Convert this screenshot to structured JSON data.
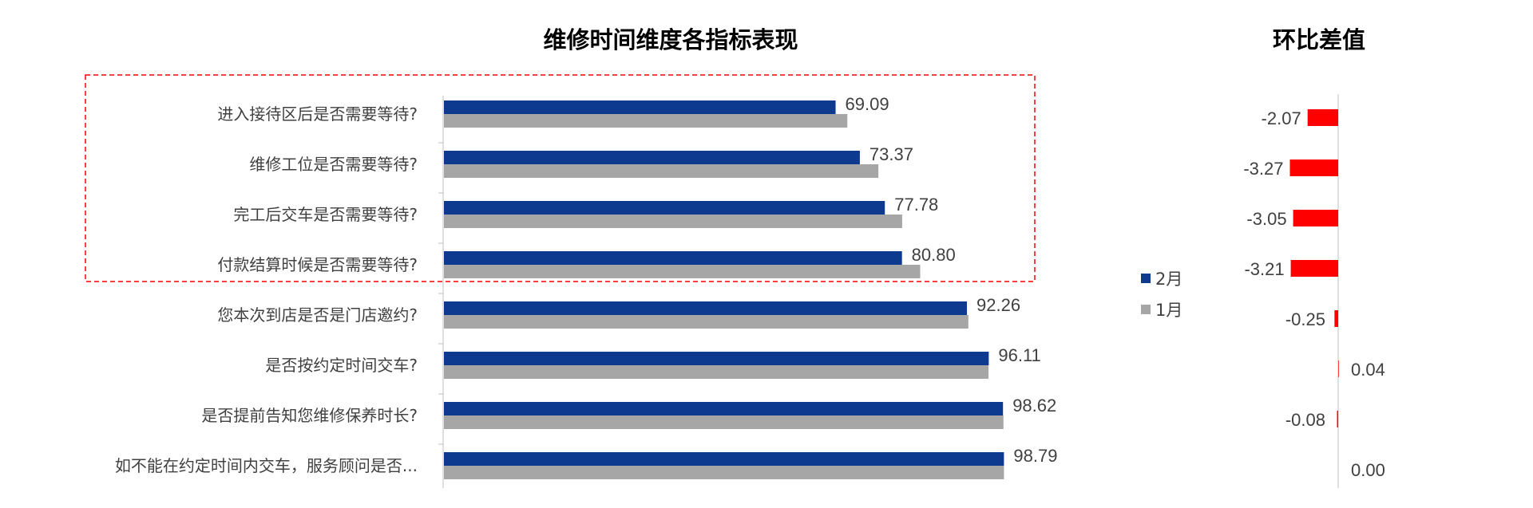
{
  "chart_data": [
    {
      "type": "bar",
      "orientation": "horizontal",
      "title": "维修时间维度各指标表现",
      "categories": [
        "进入接待区后是否需要等待?",
        "维修工位是否需要等待?",
        "完工后交车是否需要等待?",
        "付款结算时候是否需要等待?",
        "您本次到店是否是门店邀约?",
        "是否按约定时间交车?",
        "是否提前告知您维修保养时长?",
        "如不能在约定时间内交车，服务顾问是否..."
      ],
      "series": [
        {
          "name": "2月",
          "color": "#0d3a8e",
          "values": [
            69.09,
            73.37,
            77.78,
            80.8,
            92.26,
            96.11,
            98.62,
            98.79
          ],
          "labels": [
            "69.09",
            "73.37",
            "77.78",
            "80.80",
            "92.26",
            "96.11",
            "98.62",
            "98.79"
          ]
        },
        {
          "name": "1月",
          "color": "#a6a6a6",
          "values": [
            71.16,
            76.64,
            80.83,
            84.01,
            92.51,
            96.07,
            98.7,
            98.79
          ]
        }
      ],
      "xlim": [
        0,
        100
      ],
      "highlight": {
        "style": "dashed-box",
        "color": "#ff0000",
        "categories": [
          0,
          1,
          2,
          3
        ]
      },
      "legend": {
        "position": "right",
        "entries": [
          "2月",
          "1月"
        ]
      }
    },
    {
      "type": "bar",
      "orientation": "horizontal",
      "title": "环比差值",
      "values": [
        -2.07,
        -3.27,
        -3.05,
        -3.21,
        -0.25,
        0.04,
        -0.08,
        0.0
      ],
      "labels": [
        "-2.07",
        "-3.27",
        "-3.05",
        "-3.21",
        "-0.25",
        "0.04",
        "-0.08",
        "0.00"
      ],
      "negative_color": "#ff0000",
      "positive_color": "#ff0000",
      "xlim": [
        -4.0,
        4.0
      ]
    }
  ]
}
